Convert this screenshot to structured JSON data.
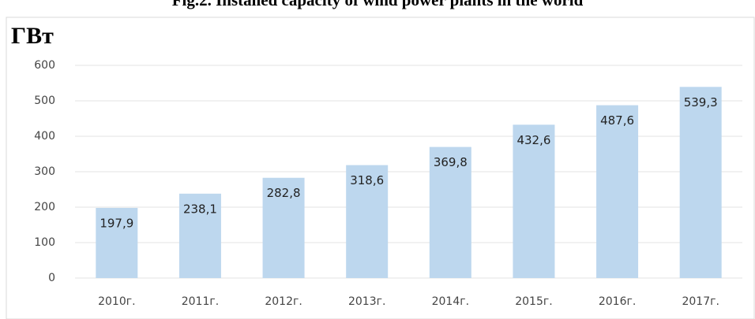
{
  "chart_data": {
    "type": "bar",
    "title": "Fig.2. Installed capacity of wind power plants in the world",
    "y_label": "ГВт",
    "categories": [
      "2010г.",
      "2011г.",
      "2012г.",
      "2013г.",
      "2014г.",
      "2015г.",
      "2016г.",
      "2017г."
    ],
    "values": [
      197.9,
      238.1,
      282.8,
      318.6,
      369.8,
      432.6,
      487.6,
      539.3
    ],
    "value_labels": [
      "197,9",
      "238,1",
      "282,8",
      "318,6",
      "369,8",
      "432,6",
      "487,6",
      "539,3"
    ],
    "color": "#bdd7ee",
    "ylim": [
      0,
      600
    ],
    "yticks": [
      0,
      100,
      200,
      300,
      400,
      500,
      600
    ],
    "grid": true
  }
}
